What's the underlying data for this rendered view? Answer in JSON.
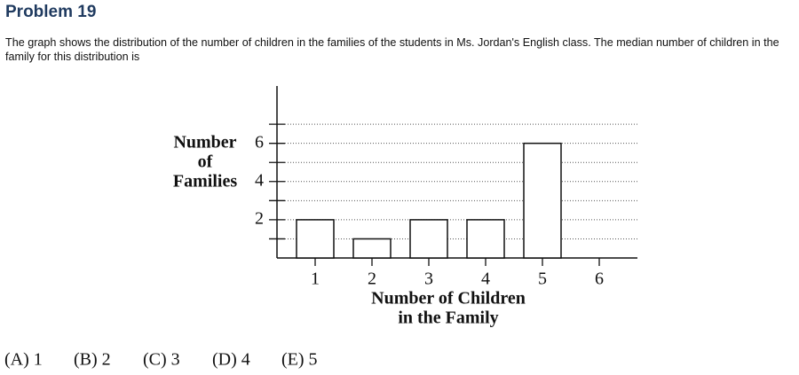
{
  "header": {
    "title": "Problem 19"
  },
  "problem": {
    "text": "The graph shows the distribution of the number of children in the families of the students in Ms. Jordan's English class. The median number of children in the family for this distribution is"
  },
  "chart_data": {
    "type": "bar",
    "categories": [
      "1",
      "2",
      "3",
      "4",
      "5",
      "6"
    ],
    "values": [
      2,
      1,
      2,
      2,
      6,
      0
    ],
    "color": "#ffffff",
    "ylim": [
      0,
      9
    ],
    "yticks": [
      2,
      4,
      6
    ],
    "minor_yticks": [
      1,
      3,
      5,
      7
    ],
    "grid": true,
    "y_label_lines": [
      "Number",
      "of",
      "Families"
    ],
    "x_label_lines": [
      "Number of Children",
      "in the Family"
    ]
  },
  "choices": [
    "(A) 1",
    "(B) 2",
    "(C) 3",
    "(D) 4",
    "(E) 5"
  ]
}
